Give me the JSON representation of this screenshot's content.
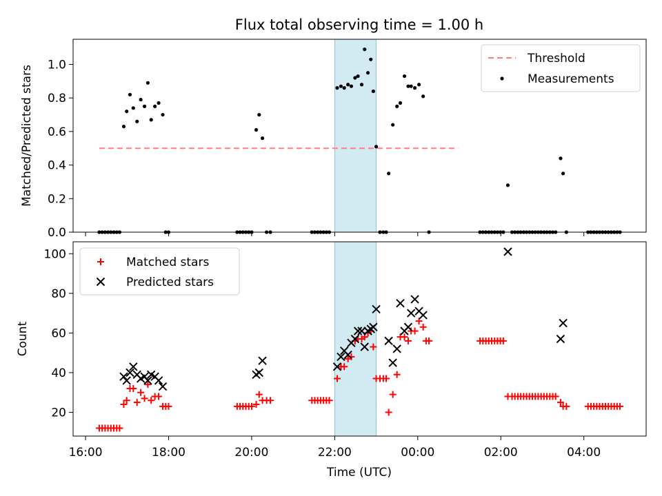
{
  "chart_data": [
    {
      "type": "scatter",
      "title": "Flux total observing time = 1.00 h",
      "xlabel": "",
      "ylabel": "Matched/Predicted stars",
      "ylim": [
        0,
        1.15
      ],
      "yticks": [
        0.0,
        0.2,
        0.4,
        0.6,
        0.8,
        1.0
      ],
      "ytick_labels": [
        "0.0",
        "0.2",
        "0.4",
        "0.6",
        "0.8",
        "1.0"
      ],
      "shaded_span": {
        "x_start": 22.0,
        "x_end": 23.0,
        "color": "#add8e6"
      },
      "threshold": {
        "name": "Threshold",
        "value": 0.5,
        "x_range": [
          16.33,
          24.97
        ],
        "color": "#ff7f7f"
      },
      "legend": {
        "location": "upper right",
        "entries": [
          "Threshold",
          "Measurements"
        ]
      },
      "series": [
        {
          "name": "Measurements",
          "marker": "dot",
          "color": "#000000",
          "points": [
            [
              16.33,
              0
            ],
            [
              16.4,
              0
            ],
            [
              16.47,
              0
            ],
            [
              16.54,
              0
            ],
            [
              16.61,
              0
            ],
            [
              16.68,
              0
            ],
            [
              16.75,
              0
            ],
            [
              16.82,
              0
            ],
            [
              16.92,
              0.63
            ],
            [
              16.99,
              0.72
            ],
            [
              17.07,
              0.82
            ],
            [
              17.15,
              0.74
            ],
            [
              17.24,
              0.66
            ],
            [
              17.33,
              0.79
            ],
            [
              17.42,
              0.75
            ],
            [
              17.5,
              0.89
            ],
            [
              17.58,
              0.67
            ],
            [
              17.67,
              0.75
            ],
            [
              17.76,
              0.77
            ],
            [
              17.86,
              0.7
            ],
            [
              17.93,
              0
            ],
            [
              18.0,
              0
            ],
            [
              19.65,
              0
            ],
            [
              19.72,
              0
            ],
            [
              19.79,
              0
            ],
            [
              19.86,
              0
            ],
            [
              19.93,
              0
            ],
            [
              20.0,
              0
            ],
            [
              20.11,
              0.61
            ],
            [
              20.18,
              0.7
            ],
            [
              20.26,
              0.56
            ],
            [
              20.36,
              0
            ],
            [
              20.45,
              0
            ],
            [
              21.45,
              0
            ],
            [
              21.52,
              0
            ],
            [
              21.59,
              0
            ],
            [
              21.66,
              0
            ],
            [
              21.73,
              0
            ],
            [
              21.8,
              0
            ],
            [
              21.87,
              0
            ],
            [
              22.06,
              0.86
            ],
            [
              22.15,
              0.87
            ],
            [
              22.23,
              0.86
            ],
            [
              22.32,
              0.88
            ],
            [
              22.4,
              0.87
            ],
            [
              22.49,
              0.92
            ],
            [
              22.56,
              0.93
            ],
            [
              22.65,
              0.88
            ],
            [
              22.72,
              1.09
            ],
            [
              22.8,
              0.95
            ],
            [
              22.87,
              1.03
            ],
            [
              22.93,
              0.84
            ],
            [
              23.0,
              0.51
            ],
            [
              23.09,
              0
            ],
            [
              23.17,
              0
            ],
            [
              23.24,
              0
            ],
            [
              23.3,
              0.35
            ],
            [
              23.4,
              0.64
            ],
            [
              23.5,
              0.75
            ],
            [
              23.58,
              0.77
            ],
            [
              23.68,
              0.93
            ],
            [
              23.77,
              0.87
            ],
            [
              23.84,
              0.87
            ],
            [
              23.93,
              0.86
            ],
            [
              24.03,
              0.88
            ],
            [
              24.13,
              0.81
            ],
            [
              24.27,
              0
            ],
            [
              25.5,
              0
            ],
            [
              25.57,
              0
            ],
            [
              25.64,
              0
            ],
            [
              25.71,
              0
            ],
            [
              25.78,
              0
            ],
            [
              25.85,
              0
            ],
            [
              25.92,
              0
            ],
            [
              25.99,
              0
            ],
            [
              26.06,
              0
            ],
            [
              26.17,
              0.28
            ],
            [
              26.27,
              0
            ],
            [
              26.34,
              0
            ],
            [
              26.41,
              0
            ],
            [
              26.48,
              0
            ],
            [
              26.55,
              0
            ],
            [
              26.62,
              0
            ],
            [
              26.69,
              0
            ],
            [
              26.76,
              0
            ],
            [
              26.83,
              0
            ],
            [
              26.9,
              0
            ],
            [
              26.97,
              0
            ],
            [
              27.04,
              0
            ],
            [
              27.11,
              0
            ],
            [
              27.18,
              0
            ],
            [
              27.25,
              0
            ],
            [
              27.32,
              0
            ],
            [
              27.44,
              0.44
            ],
            [
              27.5,
              0.35
            ],
            [
              27.58,
              0
            ],
            [
              28.1,
              0
            ],
            [
              28.17,
              0
            ],
            [
              28.24,
              0
            ],
            [
              28.31,
              0
            ],
            [
              28.38,
              0
            ],
            [
              28.45,
              0
            ],
            [
              28.52,
              0
            ],
            [
              28.59,
              0
            ],
            [
              28.66,
              0
            ],
            [
              28.73,
              0
            ],
            [
              28.8,
              0
            ],
            [
              28.87,
              0
            ]
          ]
        }
      ]
    },
    {
      "type": "scatter",
      "title": "",
      "xlabel": "Time (UTC)",
      "ylabel": "Count",
      "ylim": [
        8,
        106
      ],
      "xlim": [
        15.7,
        29.5
      ],
      "xticks": [
        16,
        18,
        20,
        22,
        24,
        26,
        28
      ],
      "xtick_labels": [
        "16:00",
        "18:00",
        "20:00",
        "22:00",
        "00:00",
        "02:00",
        "04:00"
      ],
      "yticks": [
        20,
        40,
        60,
        80,
        100
      ],
      "ytick_labels": [
        "20",
        "40",
        "60",
        "80",
        "100"
      ],
      "shaded_span": {
        "x_start": 22.0,
        "x_end": 23.0,
        "color": "#add8e6"
      },
      "legend": {
        "location": "upper left",
        "entries": [
          "Matched stars",
          "Predicted stars"
        ]
      },
      "series": [
        {
          "name": "Matched stars",
          "marker": "plus",
          "color": "#ff0000",
          "points": [
            [
              16.33,
              12
            ],
            [
              16.4,
              12
            ],
            [
              16.47,
              12
            ],
            [
              16.54,
              12
            ],
            [
              16.61,
              12
            ],
            [
              16.68,
              12
            ],
            [
              16.75,
              12
            ],
            [
              16.82,
              12
            ],
            [
              16.92,
              24
            ],
            [
              16.99,
              26
            ],
            [
              17.07,
              32
            ],
            [
              17.15,
              32
            ],
            [
              17.24,
              25
            ],
            [
              17.33,
              30
            ],
            [
              17.42,
              27
            ],
            [
              17.5,
              34
            ],
            [
              17.58,
              26
            ],
            [
              17.67,
              28
            ],
            [
              17.76,
              28
            ],
            [
              17.86,
              23
            ],
            [
              17.93,
              23
            ],
            [
              18.0,
              23
            ],
            [
              19.65,
              23
            ],
            [
              19.72,
              23
            ],
            [
              19.79,
              23
            ],
            [
              19.86,
              23
            ],
            [
              19.93,
              23
            ],
            [
              20.0,
              23
            ],
            [
              20.11,
              24
            ],
            [
              20.18,
              29
            ],
            [
              20.26,
              26
            ],
            [
              20.36,
              26
            ],
            [
              20.45,
              26
            ],
            [
              21.45,
              26
            ],
            [
              21.52,
              26
            ],
            [
              21.59,
              26
            ],
            [
              21.66,
              26
            ],
            [
              21.73,
              26
            ],
            [
              21.8,
              26
            ],
            [
              21.87,
              26
            ],
            [
              22.06,
              37
            ],
            [
              22.15,
              43
            ],
            [
              22.23,
              43
            ],
            [
              22.32,
              47
            ],
            [
              22.4,
              48
            ],
            [
              22.49,
              56
            ],
            [
              22.56,
              57
            ],
            [
              22.65,
              57
            ],
            [
              22.72,
              58
            ],
            [
              22.8,
              60
            ],
            [
              22.87,
              61
            ],
            [
              22.93,
              53
            ],
            [
              23.0,
              37
            ],
            [
              23.09,
              37
            ],
            [
              23.17,
              37
            ],
            [
              23.24,
              37
            ],
            [
              23.3,
              20
            ],
            [
              23.4,
              29
            ],
            [
              23.5,
              39
            ],
            [
              23.58,
              58
            ],
            [
              23.68,
              58
            ],
            [
              23.77,
              56
            ],
            [
              23.84,
              61
            ],
            [
              23.93,
              61
            ],
            [
              24.03,
              66
            ],
            [
              24.13,
              63
            ],
            [
              24.2,
              56
            ],
            [
              24.27,
              56
            ],
            [
              25.5,
              56
            ],
            [
              25.57,
              56
            ],
            [
              25.64,
              56
            ],
            [
              25.71,
              56
            ],
            [
              25.78,
              56
            ],
            [
              25.85,
              56
            ],
            [
              25.92,
              56
            ],
            [
              25.99,
              56
            ],
            [
              26.06,
              56
            ],
            [
              26.17,
              28
            ],
            [
              26.27,
              28
            ],
            [
              26.34,
              28
            ],
            [
              26.41,
              28
            ],
            [
              26.48,
              28
            ],
            [
              26.55,
              28
            ],
            [
              26.62,
              28
            ],
            [
              26.69,
              28
            ],
            [
              26.76,
              28
            ],
            [
              26.83,
              28
            ],
            [
              26.9,
              28
            ],
            [
              26.97,
              28
            ],
            [
              27.04,
              28
            ],
            [
              27.11,
              28
            ],
            [
              27.18,
              28
            ],
            [
              27.25,
              28
            ],
            [
              27.32,
              28
            ],
            [
              27.44,
              25
            ],
            [
              27.5,
              23
            ],
            [
              27.58,
              23
            ],
            [
              28.1,
              23
            ],
            [
              28.17,
              23
            ],
            [
              28.24,
              23
            ],
            [
              28.31,
              23
            ],
            [
              28.38,
              23
            ],
            [
              28.45,
              23
            ],
            [
              28.52,
              23
            ],
            [
              28.59,
              23
            ],
            [
              28.66,
              23
            ],
            [
              28.73,
              23
            ],
            [
              28.8,
              23
            ],
            [
              28.87,
              23
            ]
          ]
        },
        {
          "name": "Predicted stars",
          "marker": "x",
          "color": "#000000",
          "points": [
            [
              16.92,
              38
            ],
            [
              16.99,
              36
            ],
            [
              17.07,
              40
            ],
            [
              17.15,
              43
            ],
            [
              17.24,
              39
            ],
            [
              17.33,
              37
            ],
            [
              17.42,
              38
            ],
            [
              17.5,
              36
            ],
            [
              17.58,
              39
            ],
            [
              17.67,
              38
            ],
            [
              17.76,
              36
            ],
            [
              17.86,
              33
            ],
            [
              20.11,
              39
            ],
            [
              20.18,
              40
            ],
            [
              20.26,
              46
            ],
            [
              22.06,
              43
            ],
            [
              22.15,
              48
            ],
            [
              22.23,
              51
            ],
            [
              22.32,
              49
            ],
            [
              22.4,
              55
            ],
            [
              22.49,
              57
            ],
            [
              22.56,
              61
            ],
            [
              22.65,
              61
            ],
            [
              22.72,
              53
            ],
            [
              22.8,
              61
            ],
            [
              22.87,
              62
            ],
            [
              22.93,
              63
            ],
            [
              23.0,
              72
            ],
            [
              23.3,
              56
            ],
            [
              23.4,
              45
            ],
            [
              23.5,
              52
            ],
            [
              23.58,
              75
            ],
            [
              23.68,
              61
            ],
            [
              23.77,
              63
            ],
            [
              23.84,
              70
            ],
            [
              23.93,
              77
            ],
            [
              24.03,
              71
            ],
            [
              24.13,
              69
            ],
            [
              26.17,
              101
            ],
            [
              27.44,
              57
            ],
            [
              27.5,
              65
            ]
          ]
        }
      ]
    }
  ]
}
